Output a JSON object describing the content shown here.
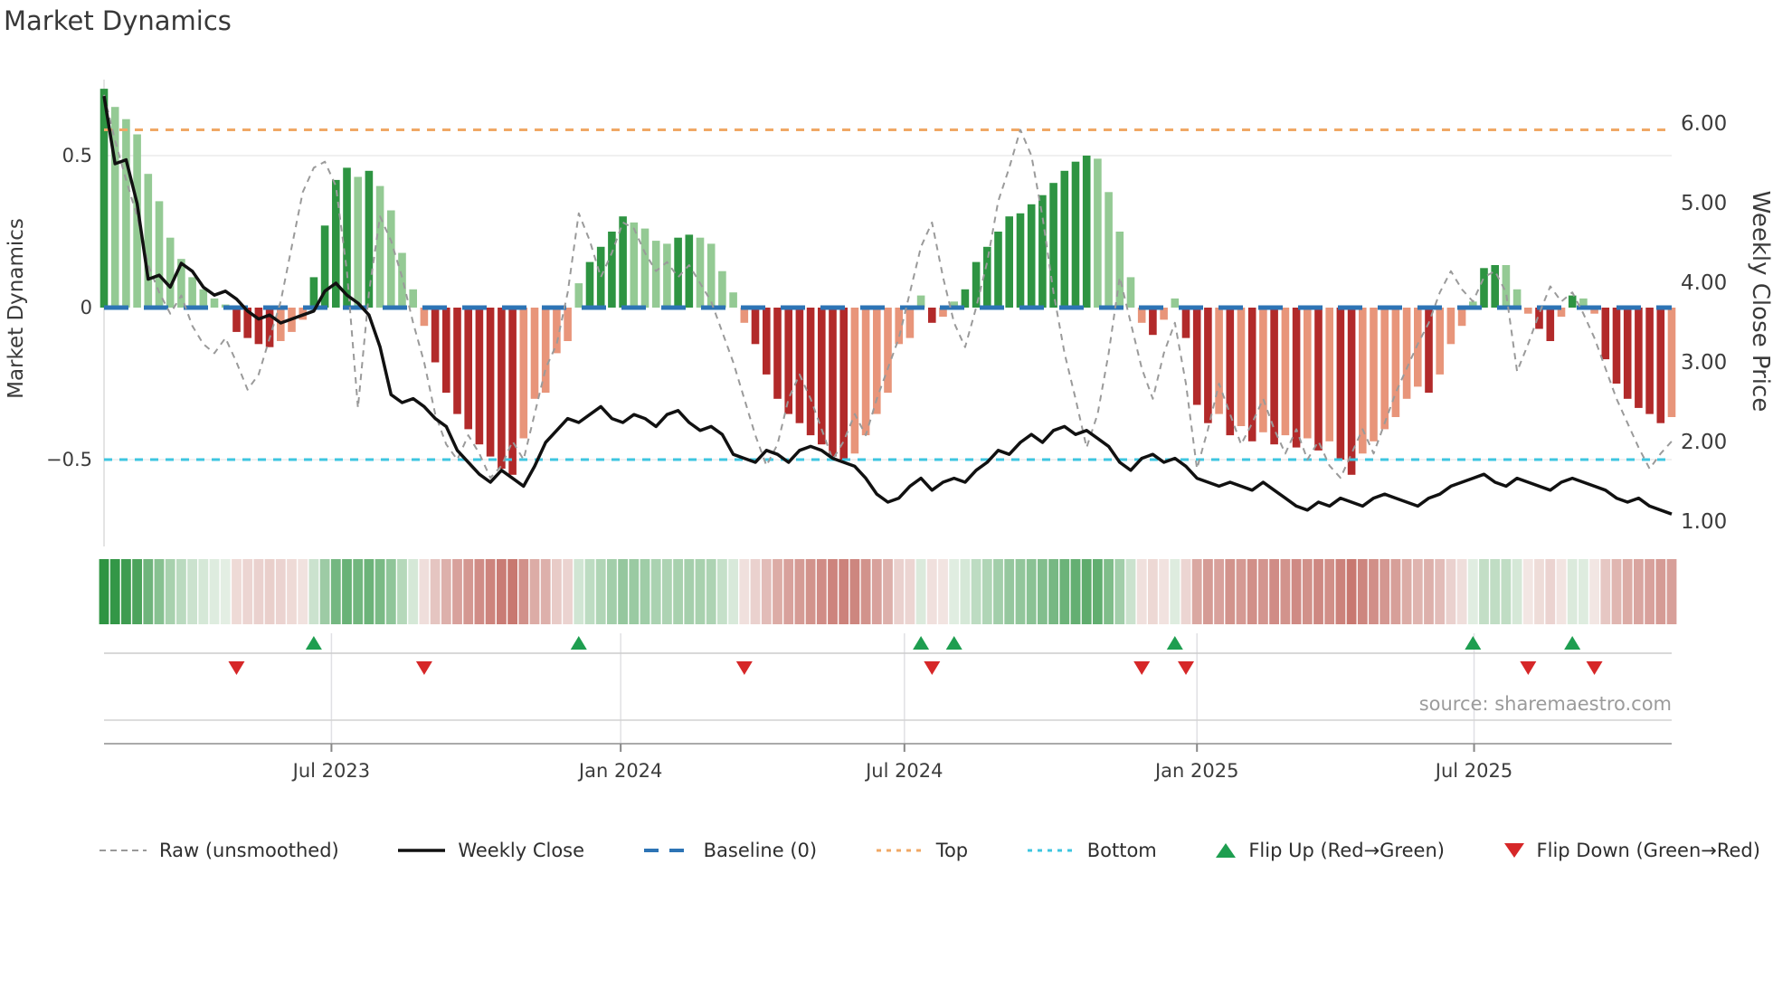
{
  "title": "Market Dynamics",
  "source_label": "source: sharemaestro.com",
  "axes": {
    "left": {
      "title": "Market Dynamics",
      "ticks": [
        {
          "label": "0.5",
          "value": 0.5
        },
        {
          "label": "0",
          "value": 0.0
        },
        {
          "label": "−0.5",
          "value": -0.5
        }
      ]
    },
    "right": {
      "title": "Weekly Close Price",
      "ticks": [
        {
          "label": "6.00",
          "value": 6.0
        },
        {
          "label": "5.00",
          "value": 5.0
        },
        {
          "label": "4.00",
          "value": 4.0
        },
        {
          "label": "3.00",
          "value": 3.0
        },
        {
          "label": "2.00",
          "value": 2.0
        },
        {
          "label": "1.00",
          "value": 1.0
        }
      ]
    },
    "x": {
      "ticks": [
        {
          "label": "Jul 2023",
          "week": 20.6
        },
        {
          "label": "Jan 2024",
          "week": 46.8
        },
        {
          "label": "Jul 2024",
          "week": 72.5
        },
        {
          "label": "Jan 2025",
          "week": 99.0
        },
        {
          "label": "Jul 2025",
          "week": 124.1
        }
      ]
    }
  },
  "legend": {
    "items": [
      {
        "label": "Raw (unsmoothed)",
        "type": "dashed-line",
        "color": "#999999"
      },
      {
        "label": "Weekly Close",
        "type": "solid-line",
        "color": "#111111"
      },
      {
        "label": "Baseline (0)",
        "type": "long-dash-line",
        "color": "#2d74b5"
      },
      {
        "label": "Top",
        "type": "dotted-line",
        "color": "#f0a865"
      },
      {
        "label": "Bottom",
        "type": "dotted-line",
        "color": "#3ec6e0"
      },
      {
        "label": "Flip Up (Red→Green)",
        "type": "up-triangle",
        "color": "#1e9e50"
      },
      {
        "label": "Flip Down (Green→Red)",
        "type": "down-triangle",
        "color": "#d62728"
      }
    ]
  },
  "colors": {
    "bar_dark_green": "#2e9442",
    "bar_light_green": "#94ca94",
    "bar_dark_red": "#b22a2a",
    "bar_light_red": "#e8957a",
    "baseline_blue": "#2d74b5",
    "top_orange": "#f0a865",
    "bottom_cyan": "#3ec6e0",
    "raw_gray": "#9a9a9a",
    "close_black": "#111111",
    "flip_up_green": "#1e9e50",
    "flip_down_red": "#d62728",
    "heat_green_max": "#2e9442",
    "heat_red_max": "#b03a30",
    "grid": "#ebebeb",
    "axis_line": "#aaaaaa"
  },
  "chart_data": {
    "type": "bar",
    "subtype": "combo: weekly bars + two overlay lines + reference lines + flip markers + heat strip",
    "title": "Market Dynamics",
    "xlabel": "",
    "ylabel_left": "Market Dynamics",
    "ylabel_right": "Weekly Close Price",
    "n_weeks": 143,
    "x_tick_labels": [
      "Jul 2023",
      "Jan 2024",
      "Jul 2024",
      "Jan 2025",
      "Jul 2025"
    ],
    "ylim_left": [
      -0.79,
      0.75
    ],
    "ylim_right_labels": [
      1.0,
      6.0
    ],
    "baseline": 0.0,
    "top_line": 0.585,
    "bottom_line": -0.5,
    "grid": "horizontal at 0.5 and -0.5 only; vertical gridlines in lower marker panel",
    "legend_position": "bottom row",
    "series": [
      {
        "name": "Market Dynamics (smoothed bars)",
        "axis": "left",
        "values": [
          0.72,
          0.66,
          0.62,
          0.57,
          0.44,
          0.35,
          0.23,
          0.16,
          0.1,
          0.06,
          0.03,
          0.01,
          -0.08,
          -0.1,
          -0.12,
          -0.13,
          -0.11,
          -0.08,
          -0.04,
          0.1,
          0.27,
          0.42,
          0.46,
          0.43,
          0.45,
          0.4,
          0.32,
          0.18,
          0.06,
          -0.06,
          -0.18,
          -0.28,
          -0.35,
          -0.4,
          -0.45,
          -0.49,
          -0.53,
          -0.55,
          -0.43,
          -0.3,
          -0.28,
          -0.15,
          -0.11,
          0.08,
          0.15,
          0.2,
          0.25,
          0.3,
          0.28,
          0.26,
          0.22,
          0.21,
          0.23,
          0.24,
          0.23,
          0.21,
          0.12,
          0.05,
          -0.05,
          -0.12,
          -0.22,
          -0.3,
          -0.35,
          -0.38,
          -0.42,
          -0.45,
          -0.49,
          -0.5,
          -0.48,
          -0.42,
          -0.35,
          -0.28,
          -0.12,
          -0.1,
          0.04,
          -0.05,
          -0.03,
          0.02,
          0.06,
          0.15,
          0.2,
          0.25,
          0.3,
          0.31,
          0.34,
          0.37,
          0.41,
          0.45,
          0.48,
          0.5,
          0.49,
          0.38,
          0.25,
          0.1,
          -0.05,
          -0.09,
          -0.04,
          0.03,
          -0.1,
          -0.32,
          -0.38,
          -0.35,
          -0.42,
          -0.39,
          -0.44,
          -0.41,
          -0.45,
          -0.42,
          -0.46,
          -0.43,
          -0.47,
          -0.44,
          -0.5,
          -0.55,
          -0.48,
          -0.44,
          -0.4,
          -0.36,
          -0.3,
          -0.26,
          -0.28,
          -0.22,
          -0.12,
          -0.06,
          0.02,
          0.13,
          0.14,
          0.14,
          0.06,
          -0.02,
          -0.07,
          -0.11,
          -0.03,
          0.04,
          0.03,
          -0.02,
          -0.17,
          -0.25,
          -0.3,
          -0.33,
          -0.35,
          -0.38,
          -0.36
        ]
      },
      {
        "name": "Raw (unsmoothed)",
        "axis": "left",
        "values": [
          0.7,
          0.55,
          0.42,
          0.3,
          0.14,
          0.05,
          -0.02,
          0.04,
          -0.06,
          -0.12,
          -0.15,
          -0.1,
          -0.18,
          -0.27,
          -0.22,
          -0.1,
          0.02,
          0.2,
          0.38,
          0.46,
          0.48,
          0.4,
          0.12,
          -0.33,
          0.05,
          0.3,
          0.22,
          0.1,
          -0.05,
          -0.18,
          -0.35,
          -0.45,
          -0.5,
          -0.42,
          -0.48,
          -0.56,
          -0.52,
          -0.44,
          -0.5,
          -0.35,
          -0.2,
          -0.12,
          0.05,
          0.31,
          0.22,
          0.1,
          0.18,
          0.28,
          0.26,
          0.18,
          0.12,
          0.15,
          0.1,
          0.14,
          0.08,
          0.02,
          -0.08,
          -0.18,
          -0.3,
          -0.42,
          -0.52,
          -0.45,
          -0.3,
          -0.22,
          -0.3,
          -0.4,
          -0.5,
          -0.44,
          -0.35,
          -0.42,
          -0.3,
          -0.2,
          -0.1,
          0.05,
          0.2,
          0.28,
          0.1,
          -0.05,
          -0.13,
          0.0,
          0.15,
          0.35,
          0.46,
          0.585,
          0.5,
          0.3,
          0.05,
          -0.15,
          -0.3,
          -0.46,
          -0.35,
          -0.15,
          0.1,
          -0.05,
          -0.2,
          -0.3,
          -0.15,
          -0.05,
          -0.25,
          -0.53,
          -0.4,
          -0.25,
          -0.35,
          -0.45,
          -0.38,
          -0.3,
          -0.4,
          -0.48,
          -0.4,
          -0.5,
          -0.44,
          -0.52,
          -0.56,
          -0.48,
          -0.4,
          -0.48,
          -0.38,
          -0.28,
          -0.2,
          -0.12,
          -0.05,
          0.05,
          0.12,
          0.06,
          0.02,
          0.1,
          0.12,
          0.05,
          -0.21,
          -0.12,
          -0.02,
          0.07,
          0.02,
          0.05,
          -0.02,
          -0.1,
          -0.2,
          -0.3,
          -0.38,
          -0.46,
          -0.53,
          -0.48,
          -0.44
        ]
      },
      {
        "name": "Weekly Close",
        "axis": "right",
        "values": [
          6.35,
          5.5,
          5.55,
          5.0,
          4.05,
          4.1,
          3.95,
          4.25,
          4.15,
          3.95,
          3.85,
          3.9,
          3.8,
          3.65,
          3.55,
          3.6,
          3.5,
          3.55,
          3.6,
          3.65,
          3.9,
          4.0,
          3.85,
          3.75,
          3.6,
          3.2,
          2.6,
          2.5,
          2.55,
          2.45,
          2.3,
          2.2,
          1.9,
          1.75,
          1.6,
          1.5,
          1.65,
          1.55,
          1.45,
          1.7,
          2.0,
          2.15,
          2.3,
          2.25,
          2.35,
          2.45,
          2.3,
          2.25,
          2.35,
          2.3,
          2.2,
          2.35,
          2.4,
          2.25,
          2.15,
          2.2,
          2.1,
          1.85,
          1.8,
          1.75,
          1.9,
          1.85,
          1.75,
          1.9,
          1.95,
          1.9,
          1.8,
          1.75,
          1.7,
          1.55,
          1.35,
          1.25,
          1.3,
          1.45,
          1.55,
          1.4,
          1.5,
          1.55,
          1.5,
          1.65,
          1.75,
          1.9,
          1.85,
          2.0,
          2.1,
          2.0,
          2.15,
          2.2,
          2.1,
          2.15,
          2.05,
          1.95,
          1.75,
          1.65,
          1.8,
          1.85,
          1.75,
          1.8,
          1.7,
          1.55,
          1.5,
          1.45,
          1.5,
          1.45,
          1.4,
          1.5,
          1.4,
          1.3,
          1.2,
          1.15,
          1.25,
          1.2,
          1.3,
          1.25,
          1.2,
          1.3,
          1.35,
          1.3,
          1.25,
          1.2,
          1.3,
          1.35,
          1.45,
          1.5,
          1.55,
          1.6,
          1.5,
          1.45,
          1.55,
          1.5,
          1.45,
          1.4,
          1.5,
          1.55,
          1.5,
          1.45,
          1.4,
          1.3,
          1.25,
          1.3,
          1.2,
          1.15,
          1.1
        ]
      }
    ],
    "flip_up_weeks": [
      19,
      43,
      74,
      77,
      97,
      124,
      133
    ],
    "flip_down_weeks": [
      12,
      29,
      58,
      75,
      94,
      98,
      129,
      135
    ],
    "heat_strip": "one cell per week; hue = sign of smoothed bar value, intensity = |value|"
  }
}
